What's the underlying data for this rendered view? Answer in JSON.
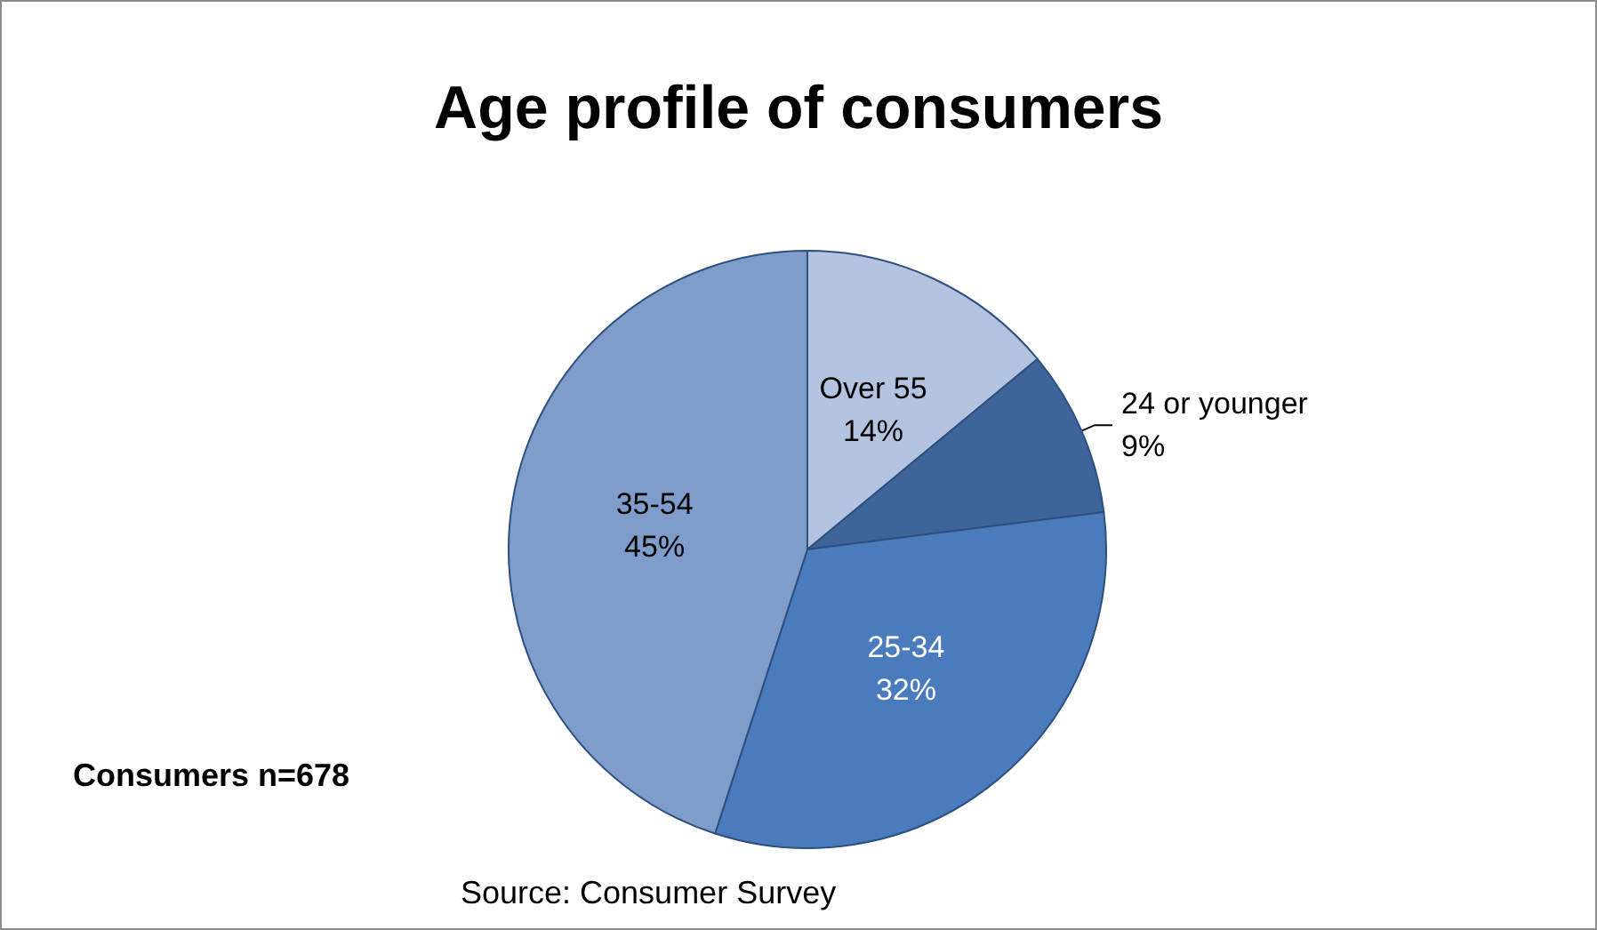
{
  "chart_data": {
    "type": "pie",
    "title": "Age profile of consumers",
    "categories": [
      "Over 55",
      "24 or younger",
      "25-34",
      "35-54"
    ],
    "values": [
      14,
      9,
      32,
      45
    ],
    "value_labels": [
      "14%",
      "9%",
      "32%",
      "45%"
    ],
    "colors": [
      "#b4c3e0",
      "#3e6599",
      "#4a7bbd",
      "#7f9dcb"
    ],
    "annotations": [
      "Consumers n=678",
      "Source: Consumer Survey"
    ],
    "legend": false
  }
}
